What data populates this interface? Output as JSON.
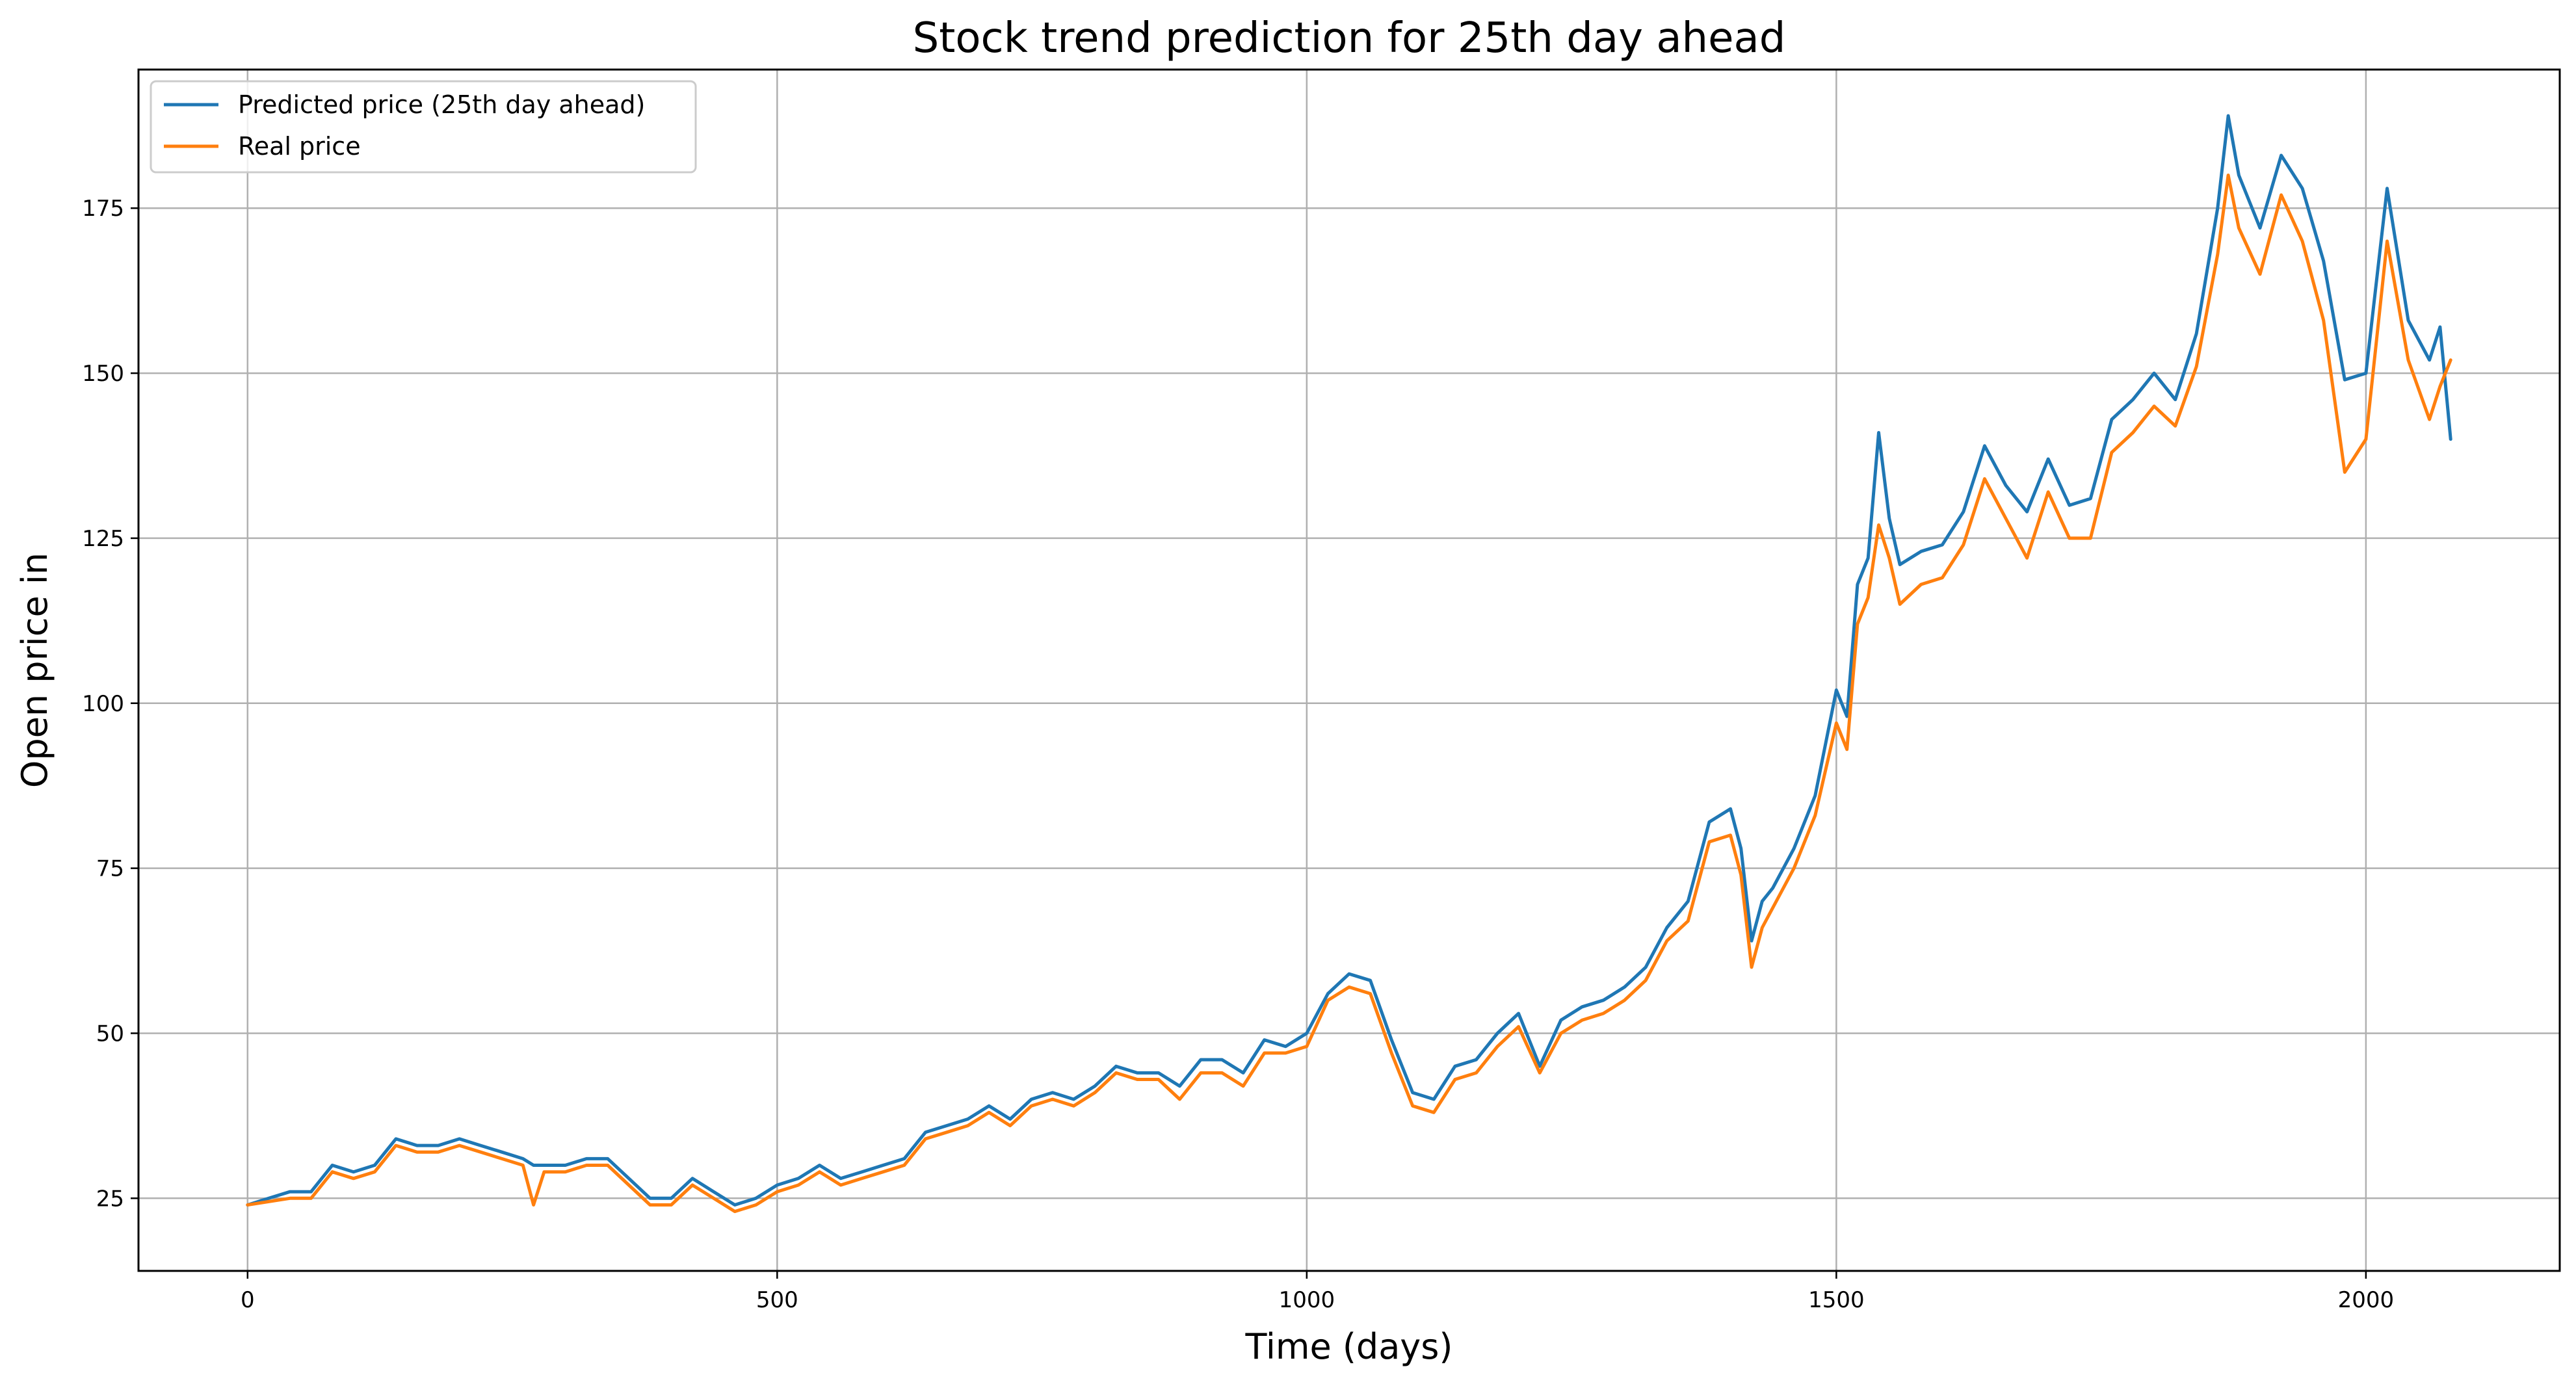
{
  "chart_data": {
    "type": "line",
    "title": "Stock trend prediction for 25th day ahead",
    "xlabel": "Time (days)",
    "ylabel": "Open price in",
    "xlim": [
      -103,
      2183
    ],
    "ylim": [
      14,
      196
    ],
    "xticks": [
      0,
      500,
      1000,
      1500,
      2000
    ],
    "yticks": [
      25,
      50,
      75,
      100,
      125,
      150,
      175
    ],
    "grid": true,
    "legend_position": "top-left",
    "series": [
      {
        "name": "Predicted price (25th day ahead)",
        "color": "#1f77b4",
        "x": [
          0,
          20,
          40,
          60,
          80,
          100,
          120,
          140,
          160,
          180,
          200,
          220,
          240,
          260,
          270,
          280,
          300,
          320,
          340,
          360,
          380,
          400,
          420,
          440,
          460,
          480,
          500,
          520,
          540,
          560,
          580,
          600,
          620,
          640,
          660,
          680,
          700,
          720,
          740,
          760,
          780,
          800,
          820,
          840,
          860,
          880,
          900,
          920,
          940,
          960,
          980,
          1000,
          1020,
          1040,
          1060,
          1080,
          1100,
          1120,
          1140,
          1160,
          1180,
          1200,
          1220,
          1240,
          1260,
          1280,
          1300,
          1320,
          1340,
          1360,
          1380,
          1400,
          1410,
          1420,
          1430,
          1440,
          1460,
          1480,
          1500,
          1510,
          1520,
          1530,
          1540,
          1550,
          1560,
          1580,
          1600,
          1620,
          1640,
          1660,
          1680,
          1700,
          1720,
          1740,
          1760,
          1780,
          1800,
          1820,
          1840,
          1860,
          1870,
          1880,
          1900,
          1920,
          1940,
          1960,
          1980,
          2000,
          2020,
          2040,
          2060,
          2070,
          2080
        ],
        "values": [
          24,
          25,
          26,
          26,
          30,
          29,
          30,
          34,
          33,
          33,
          34,
          33,
          32,
          31,
          30,
          30,
          30,
          31,
          31,
          28,
          25,
          25,
          28,
          26,
          24,
          25,
          27,
          28,
          30,
          28,
          29,
          30,
          31,
          35,
          36,
          37,
          39,
          37,
          40,
          41,
          40,
          42,
          45,
          44,
          44,
          42,
          46,
          46,
          44,
          49,
          48,
          50,
          56,
          59,
          58,
          49,
          41,
          40,
          45,
          46,
          50,
          53,
          45,
          52,
          54,
          55,
          57,
          60,
          66,
          70,
          82,
          84,
          78,
          64,
          70,
          72,
          78,
          86,
          102,
          98,
          118,
          122,
          141,
          128,
          121,
          123,
          124,
          129,
          139,
          133,
          129,
          137,
          130,
          131,
          143,
          146,
          150,
          146,
          156,
          175,
          189,
          180,
          172,
          183,
          178,
          167,
          149,
          150,
          178,
          158,
          152,
          157,
          140
        ],
        "style": "solid"
      },
      {
        "name": "Real price",
        "color": "#ff7f0e",
        "x": [
          0,
          20,
          40,
          60,
          80,
          100,
          120,
          140,
          160,
          180,
          200,
          220,
          240,
          260,
          270,
          280,
          300,
          320,
          340,
          360,
          380,
          400,
          420,
          440,
          460,
          480,
          500,
          520,
          540,
          560,
          580,
          600,
          620,
          640,
          660,
          680,
          700,
          720,
          740,
          760,
          780,
          800,
          820,
          840,
          860,
          880,
          900,
          920,
          940,
          960,
          980,
          1000,
          1020,
          1040,
          1060,
          1080,
          1100,
          1120,
          1140,
          1160,
          1180,
          1200,
          1220,
          1240,
          1260,
          1280,
          1300,
          1320,
          1340,
          1360,
          1380,
          1400,
          1410,
          1420,
          1430,
          1440,
          1460,
          1480,
          1500,
          1510,
          1520,
          1530,
          1540,
          1550,
          1560,
          1580,
          1600,
          1620,
          1640,
          1660,
          1680,
          1700,
          1720,
          1740,
          1760,
          1780,
          1800,
          1820,
          1840,
          1860,
          1870,
          1880,
          1900,
          1920,
          1940,
          1960,
          1980,
          2000,
          2020,
          2040,
          2060,
          2070,
          2080
        ],
        "values": [
          24,
          24.5,
          25,
          25,
          29,
          28,
          29,
          33,
          32,
          32,
          33,
          32,
          31,
          30,
          24,
          29,
          29,
          30,
          30,
          27,
          24,
          24,
          27,
          25,
          23,
          24,
          26,
          27,
          29,
          27,
          28,
          29,
          30,
          34,
          35,
          36,
          38,
          36,
          39,
          40,
          39,
          41,
          44,
          43,
          43,
          40,
          44,
          44,
          42,
          47,
          47,
          48,
          55,
          57,
          56,
          47,
          39,
          38,
          43,
          44,
          48,
          51,
          44,
          50,
          52,
          53,
          55,
          58,
          64,
          67,
          79,
          80,
          74,
          60,
          66,
          69,
          75,
          83,
          97,
          93,
          112,
          116,
          127,
          122,
          115,
          118,
          119,
          124,
          134,
          128,
          122,
          132,
          125,
          125,
          138,
          141,
          145,
          142,
          151,
          168,
          180,
          172,
          165,
          177,
          170,
          158,
          135,
          140,
          170,
          152,
          143,
          148,
          152
        ],
        "style": "solid"
      }
    ]
  }
}
